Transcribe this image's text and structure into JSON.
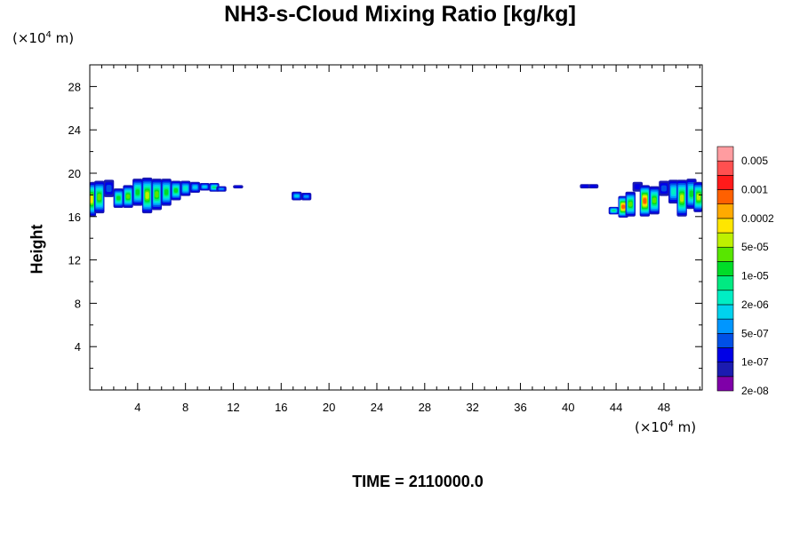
{
  "chart_data": {
    "type": "heatmap",
    "title": "NH3-s-Cloud Mixing Ratio [kg/kg]",
    "ylabel": "Height",
    "xlabel": "",
    "x_unit": {
      "base": "(×10",
      "exp": "4",
      "tail": " m)"
    },
    "y_unit": {
      "base": "(×10",
      "exp": "4",
      "tail": " m)"
    },
    "xlim": [
      0,
      51.2
    ],
    "ylim": [
      0,
      30
    ],
    "x_ticks": [
      "4",
      "8",
      "12",
      "16",
      "20",
      "24",
      "28",
      "32",
      "36",
      "40",
      "44",
      "48"
    ],
    "x_tick_values": [
      4,
      8,
      12,
      16,
      20,
      24,
      28,
      32,
      36,
      40,
      44,
      48
    ],
    "y_ticks": [
      "4",
      "8",
      "12",
      "16",
      "20",
      "24",
      "28"
    ],
    "y_tick_values": [
      4,
      8,
      12,
      16,
      20,
      24,
      28
    ],
    "colorbar": {
      "labels": [
        "0.005",
        "0.001",
        "0.0002",
        "5e-05",
        "1e-05",
        "2e-06",
        "5e-07",
        "1e-07",
        "2e-08"
      ],
      "colors": [
        "#7f00a8",
        "#1b1bb0",
        "#0000e6",
        "#0050e6",
        "#0096ff",
        "#00d2ee",
        "#00eec4",
        "#00ea82",
        "#00dc28",
        "#58e600",
        "#bef000",
        "#ffe600",
        "#ffaa00",
        "#ff6000",
        "#ff1a1a",
        "#ff5050",
        "#ff9ca0"
      ]
    },
    "clouds": [
      {
        "x": 0.1,
        "y0": 16.0,
        "y1": 19.2,
        "level": 11
      },
      {
        "x": 0.8,
        "y0": 16.3,
        "y1": 19.3,
        "level": 9
      },
      {
        "x": 1.6,
        "y0": 17.8,
        "y1": 19.4,
        "level": 3
      },
      {
        "x": 2.4,
        "y0": 16.8,
        "y1": 18.6,
        "level": 8
      },
      {
        "x": 3.2,
        "y0": 16.8,
        "y1": 18.9,
        "level": 9
      },
      {
        "x": 4.0,
        "y0": 17.0,
        "y1": 19.5,
        "level": 8
      },
      {
        "x": 4.8,
        "y0": 16.3,
        "y1": 19.6,
        "level": 10
      },
      {
        "x": 5.6,
        "y0": 16.6,
        "y1": 19.5,
        "level": 9
      },
      {
        "x": 6.4,
        "y0": 17.0,
        "y1": 19.5,
        "level": 8
      },
      {
        "x": 7.2,
        "y0": 17.5,
        "y1": 19.3,
        "level": 8
      },
      {
        "x": 8.0,
        "y0": 17.9,
        "y1": 19.3,
        "level": 6
      },
      {
        "x": 8.8,
        "y0": 18.2,
        "y1": 19.2,
        "level": 5
      },
      {
        "x": 9.6,
        "y0": 18.4,
        "y1": 19.1,
        "level": 5
      },
      {
        "x": 10.4,
        "y0": 18.3,
        "y1": 19.1,
        "level": 7
      },
      {
        "x": 11.0,
        "y0": 18.3,
        "y1": 18.8,
        "level": 4
      },
      {
        "x": 12.4,
        "y0": 18.6,
        "y1": 18.9,
        "level": 2
      },
      {
        "x": 17.3,
        "y0": 17.5,
        "y1": 18.3,
        "level": 5
      },
      {
        "x": 18.1,
        "y0": 17.5,
        "y1": 18.2,
        "level": 4
      },
      {
        "x": 41.4,
        "y0": 18.6,
        "y1": 19.0,
        "level": 2
      },
      {
        "x": 42.1,
        "y0": 18.6,
        "y1": 19.0,
        "level": 2
      },
      {
        "x": 43.8,
        "y0": 16.2,
        "y1": 16.9,
        "level": 7
      },
      {
        "x": 44.6,
        "y0": 15.9,
        "y1": 17.9,
        "level": 13
      },
      {
        "x": 45.2,
        "y0": 16.0,
        "y1": 18.3,
        "level": 9
      },
      {
        "x": 45.8,
        "y0": 18.3,
        "y1": 19.2,
        "level": 2
      },
      {
        "x": 46.4,
        "y0": 16.0,
        "y1": 18.9,
        "level": 13
      },
      {
        "x": 47.2,
        "y0": 16.2,
        "y1": 18.8,
        "level": 9
      },
      {
        "x": 48.0,
        "y0": 17.9,
        "y1": 19.3,
        "level": 3
      },
      {
        "x": 48.8,
        "y0": 17.2,
        "y1": 19.4,
        "level": 6
      },
      {
        "x": 49.5,
        "y0": 16.0,
        "y1": 19.4,
        "level": 10
      },
      {
        "x": 50.3,
        "y0": 16.7,
        "y1": 19.5,
        "level": 8
      },
      {
        "x": 50.9,
        "y0": 16.4,
        "y1": 19.2,
        "level": 10
      }
    ],
    "footer": "TIME = 2110000.0"
  }
}
